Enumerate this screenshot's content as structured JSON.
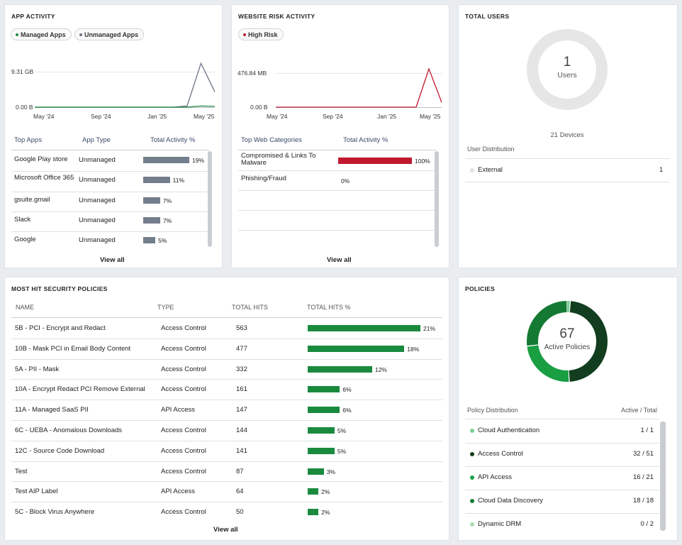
{
  "app_activity": {
    "title": "APP ACTIVITY",
    "legend": [
      {
        "label": "Managed Apps",
        "color": "#1f8a3c"
      },
      {
        "label": "Unmanaged Apps",
        "color": "#6b7486"
      }
    ],
    "y_ticks": [
      "9.31 GB",
      "0.00 B"
    ],
    "x_ticks": [
      "May '24",
      "Sep '24",
      "Jan '25",
      "May '25"
    ],
    "columns": [
      "Top Apps",
      "App Type",
      "Total Activity %"
    ],
    "rows": [
      {
        "app": "Google Play store",
        "type": "Unmanaged",
        "pct": "19%",
        "value": 19
      },
      {
        "app": "Microsoft Office 365",
        "type": "Unmanaged",
        "pct": "11%",
        "value": 11
      },
      {
        "app": "gsuite.gmail",
        "type": "Unmanaged",
        "pct": "7%",
        "value": 7
      },
      {
        "app": "Slack",
        "type": "Unmanaged",
        "pct": "7%",
        "value": 7
      },
      {
        "app": "Google",
        "type": "Unmanaged",
        "pct": "5%",
        "value": 5
      }
    ],
    "view_all": "View all",
    "chart_data": {
      "type": "line",
      "x": [
        "May '24",
        "Sep '24",
        "Jan '25",
        "May '25"
      ],
      "series": [
        {
          "name": "Unmanaged Apps",
          "color": "#6b7486",
          "points": [
            0,
            0,
            0,
            0,
            0,
            0,
            0,
            0,
            0,
            0,
            0,
            0.3,
            11.5,
            4.0
          ]
        },
        {
          "name": "Managed Apps",
          "color": "#1f8a3c",
          "points": [
            0,
            0,
            0,
            0,
            0,
            0,
            0,
            0,
            0,
            0,
            0,
            0,
            0.3,
            0.2
          ]
        }
      ]
    }
  },
  "website_risk": {
    "title": "WEBSITE RISK ACTIVITY",
    "legend": [
      {
        "label": "High Risk",
        "color": "#c0182f"
      }
    ],
    "y_ticks": [
      "476.84 MB",
      "0.00 B"
    ],
    "x_ticks": [
      "May '24",
      "Sep '24",
      "Jan '25",
      "May '25"
    ],
    "columns": [
      "Top Web Categories",
      "Total Activity %"
    ],
    "rows": [
      {
        "category": "Compromised & Links To Malware",
        "pct": "100%",
        "value": 100
      },
      {
        "category": "Phishing/Fraud",
        "pct": "0%",
        "value": 0
      }
    ],
    "view_all": "View all",
    "chart_data": {
      "type": "line",
      "x": [
        "May '24",
        "Sep '24",
        "Jan '25",
        "May '25"
      ],
      "series": [
        {
          "name": "High Risk",
          "color": "#c0182f",
          "points": [
            0,
            0,
            0,
            0,
            0,
            0,
            0,
            0,
            0,
            0,
            0,
            0,
            1.6,
            0.2
          ]
        }
      ]
    }
  },
  "total_users": {
    "title": "TOTAL USERS",
    "count": "1",
    "count_label": "Users",
    "devices": "21 Devices",
    "distribution_title": "User Distribution",
    "distribution": [
      {
        "label": "External",
        "value": "1",
        "color": "#e0e0e0"
      }
    ]
  },
  "security_policies": {
    "title": "MOST HIT SECURITY POLICIES",
    "columns": [
      "NAME",
      "TYPE",
      "TOTAL HITS",
      "TOTAL HITS %"
    ],
    "rows": [
      {
        "name": "5B - PCI - Encrypt and Redact",
        "type": "Access Control",
        "hits": "563",
        "pct": "21%",
        "value": 21
      },
      {
        "name": "10B - Mask PCI in Email Body Content",
        "type": "Access Control",
        "hits": "477",
        "pct": "18%",
        "value": 18
      },
      {
        "name": "5A - PII - Mask",
        "type": "Access Control",
        "hits": "332",
        "pct": "12%",
        "value": 12
      },
      {
        "name": "10A - Encrypt Redact PCI Remove External",
        "type": "Access Control",
        "hits": "161",
        "pct": "6%",
        "value": 6
      },
      {
        "name": "11A - Managed SaaS PII",
        "type": "API Access",
        "hits": "147",
        "pct": "6%",
        "value": 6
      },
      {
        "name": "6C - UEBA - Anomalous Downloads",
        "type": "Access Control",
        "hits": "144",
        "pct": "5%",
        "value": 5
      },
      {
        "name": "12C - Source Code Download",
        "type": "Access Control",
        "hits": "141",
        "pct": "5%",
        "value": 5
      },
      {
        "name": "Test",
        "type": "Access Control",
        "hits": "87",
        "pct": "3%",
        "value": 3
      },
      {
        "name": "Test AIP Label",
        "type": "API Access",
        "hits": "64",
        "pct": "2%",
        "value": 2
      },
      {
        "name": "5C - Block Virus Anywhere",
        "type": "Access Control",
        "hits": "50",
        "pct": "2%",
        "value": 2
      }
    ],
    "view_all": "View all"
  },
  "policies": {
    "title": "POLICIES",
    "count": "67",
    "count_label": "Active Policies",
    "distribution_title": "Policy Distribution",
    "distribution_col": "Active / Total",
    "distribution": [
      {
        "label": "Cloud Authentication",
        "value": "1 / 1",
        "active": 1,
        "color": "#7ccf97"
      },
      {
        "label": "Access Control",
        "value": "32 / 51",
        "active": 32,
        "color": "#123d1e"
      },
      {
        "label": "API Access",
        "value": "16 / 21",
        "active": 16,
        "color": "#199e41"
      },
      {
        "label": "Cloud Data Discovery",
        "value": "18 / 18",
        "active": 18,
        "color": "#147a33"
      },
      {
        "label": "Dynamic DRM",
        "value": "0 / 2",
        "active": 0,
        "color": "#a8dcb6"
      }
    ]
  }
}
